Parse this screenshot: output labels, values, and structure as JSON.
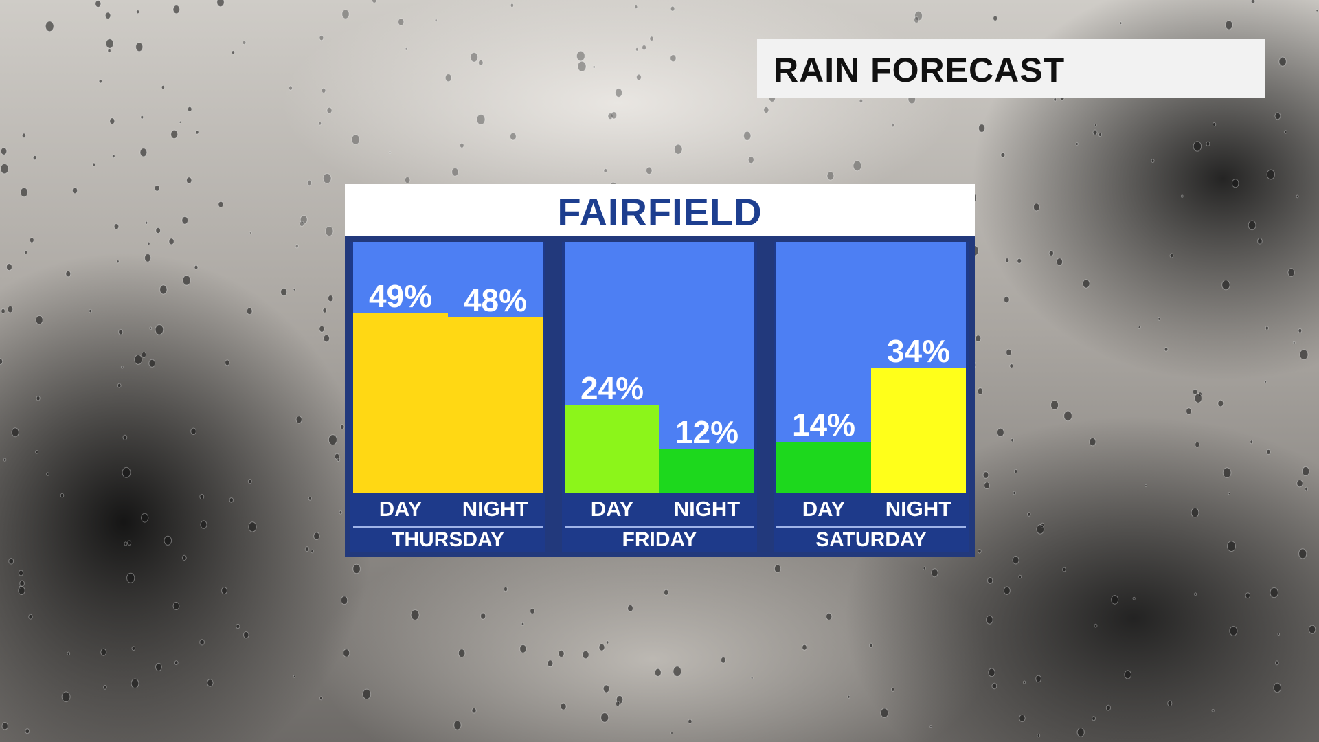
{
  "header": {
    "title": "RAIN FORECAST"
  },
  "panel": {
    "location": "FAIRFIELD"
  },
  "colors": {
    "panel_bg": "#22397c",
    "plot_bg": "#4d7ff3",
    "title_text": "#1d3e8f",
    "bar_gold": "#ffd814",
    "bar_yellow": "#ffff1a",
    "bar_lime": "#8cf51a",
    "bar_green": "#1dd81d"
  },
  "chart_data": {
    "type": "bar",
    "title": "FAIRFIELD",
    "ylim": [
      0,
      100
    ],
    "groups": [
      {
        "day": "THURSDAY",
        "bars": [
          {
            "period": "DAY",
            "value": 49,
            "label": "49%",
            "color": "#ffd814"
          },
          {
            "period": "NIGHT",
            "value": 48,
            "label": "48%",
            "color": "#ffd814"
          }
        ]
      },
      {
        "day": "FRIDAY",
        "bars": [
          {
            "period": "DAY",
            "value": 24,
            "label": "24%",
            "color": "#8cf51a"
          },
          {
            "period": "NIGHT",
            "value": 12,
            "label": "12%",
            "color": "#1dd81d"
          }
        ]
      },
      {
        "day": "SATURDAY",
        "bars": [
          {
            "period": "DAY",
            "value": 14,
            "label": "14%",
            "color": "#1dd81d"
          },
          {
            "period": "NIGHT",
            "value": 34,
            "label": "34%",
            "color": "#ffff1a"
          }
        ]
      }
    ]
  }
}
